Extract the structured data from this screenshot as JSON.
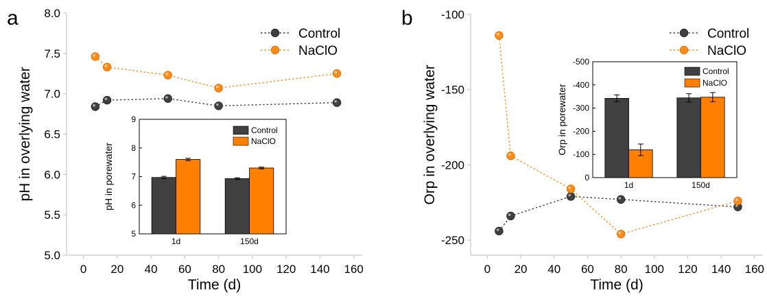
{
  "chart_data": [
    {
      "panel_label": "a",
      "type": "line",
      "xlabel": "Time (d)",
      "ylabel": "pH in overlying water",
      "xlim": [
        -10,
        165
      ],
      "ylim": [
        5.0,
        8.0
      ],
      "xticks": [
        0,
        20,
        40,
        60,
        80,
        100,
        120,
        140,
        160
      ],
      "yticks": [
        5.0,
        5.5,
        6.0,
        6.5,
        7.0,
        7.5,
        8.0
      ],
      "ytick_labels": [
        "5.0",
        "5.5",
        "6.0",
        "6.5",
        "7.0",
        "7.5",
        "8.0"
      ],
      "grid": false,
      "legend_position": "top-right",
      "series": [
        {
          "name": "Control",
          "color": "#404040",
          "x": [
            7,
            14,
            50,
            80,
            150
          ],
          "y": [
            6.84,
            6.92,
            6.94,
            6.85,
            6.89
          ]
        },
        {
          "name": "NaClO",
          "color": "#ff8c1a",
          "x": [
            7,
            14,
            50,
            80,
            150
          ],
          "y": [
            7.46,
            7.33,
            7.23,
            7.07,
            7.25
          ]
        }
      ],
      "inset": {
        "type": "bar",
        "ylabel": "pH in porewater",
        "ylim": [
          5,
          9
        ],
        "yticks": [
          5,
          6,
          7,
          8,
          9
        ],
        "categories": [
          "1d",
          "150d"
        ],
        "legend_position": "top-right",
        "series": [
          {
            "name": "Control",
            "color": "#404040",
            "values": [
              6.97,
              6.93
            ],
            "errors": [
              0.04,
              0.03
            ]
          },
          {
            "name": "NaClO",
            "color": "#ff8000",
            "values": [
              7.6,
              7.3
            ],
            "errors": [
              0.04,
              0.03
            ]
          }
        ]
      }
    },
    {
      "panel_label": "b",
      "type": "line",
      "xlabel": "Time (d)",
      "ylabel": "Orp in overlying water",
      "xlim": [
        -10,
        165
      ],
      "ylim": [
        -260,
        -100
      ],
      "xticks": [
        0,
        20,
        40,
        60,
        80,
        100,
        120,
        140,
        160
      ],
      "yticks": [
        -250,
        -200,
        -150,
        -100
      ],
      "ytick_labels": [
        "-250",
        "-200",
        "-150",
        "-100"
      ],
      "grid": false,
      "legend_position": "top-right",
      "series": [
        {
          "name": "Control",
          "color": "#404040",
          "x": [
            7,
            14,
            50,
            80,
            150
          ],
          "y": [
            -244,
            -234,
            -221,
            -223,
            -228
          ]
        },
        {
          "name": "NaClO",
          "color": "#ff8c1a",
          "x": [
            7,
            14,
            50,
            80,
            150
          ],
          "y": [
            -114,
            -194,
            -216,
            -246,
            -224
          ]
        }
      ],
      "inset": {
        "type": "bar",
        "ylabel": "Orp in porewater",
        "ylim": [
          0,
          -500
        ],
        "yticks": [
          0,
          -100,
          -200,
          -300,
          -400,
          -500
        ],
        "categories": [
          "1d",
          "150d"
        ],
        "legend_position": "top-right",
        "series": [
          {
            "name": "Control",
            "color": "#404040",
            "values": [
              -342,
              -344
            ],
            "errors": [
              15,
              18
            ]
          },
          {
            "name": "NaClO",
            "color": "#ff8000",
            "values": [
              -120,
              -347
            ],
            "errors": [
              25,
              20
            ]
          }
        ]
      }
    }
  ]
}
